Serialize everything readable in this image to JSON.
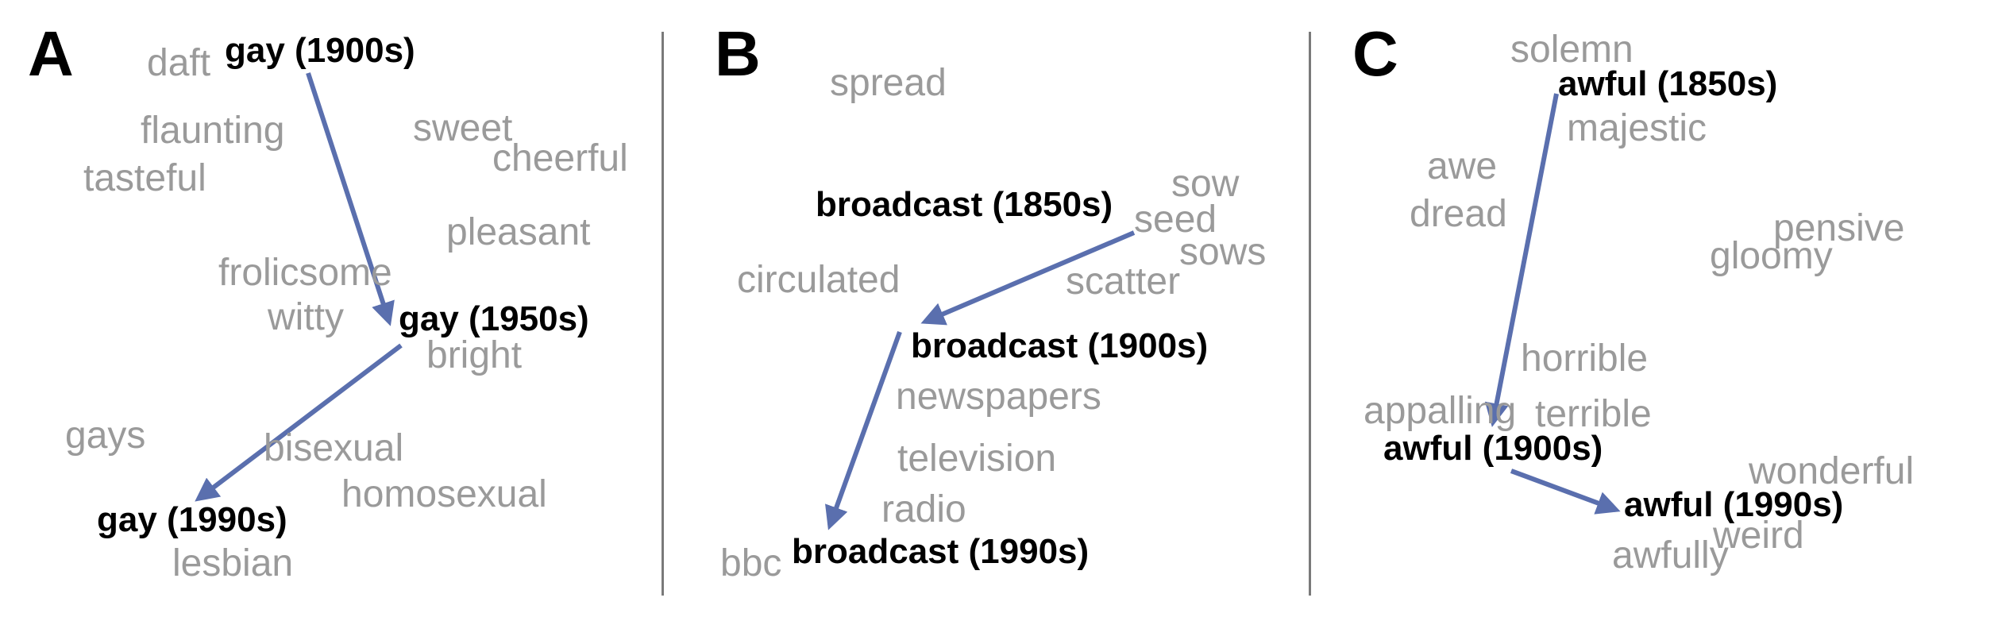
{
  "panels": [
    {
      "letter": "A",
      "target": [
        "gay (1900s)",
        "gay (1950s)",
        "gay (1990s)"
      ],
      "neighbors": [
        "daft",
        "flaunting",
        "tasteful",
        "sweet",
        "cheerful",
        "pleasant",
        "frolicsome",
        "witty",
        "bright",
        "gays",
        "bisexual",
        "homosexual",
        "lesbian"
      ]
    },
    {
      "letter": "B",
      "target": [
        "broadcast (1850s)",
        "broadcast (1900s)",
        "broadcast (1990s)"
      ],
      "neighbors": [
        "spread",
        "sow",
        "seed",
        "sows",
        "scatter",
        "circulated",
        "newspapers",
        "television",
        "radio",
        "bbc"
      ]
    },
    {
      "letter": "C",
      "target": [
        "awful (1850s)",
        "awful (1900s)",
        "awful (1990s)"
      ],
      "neighbors": [
        "solemn",
        "majestic",
        "awe",
        "dread",
        "pensive",
        "gloomy",
        "horrible",
        "appalling",
        "terrible",
        "wonderful",
        "weird",
        "awfully"
      ]
    }
  ],
  "colors": {
    "arrow": "#5a6fae",
    "neighbor": "#9a9a9a",
    "target": "#000000",
    "divider": "#7a7a7a"
  }
}
